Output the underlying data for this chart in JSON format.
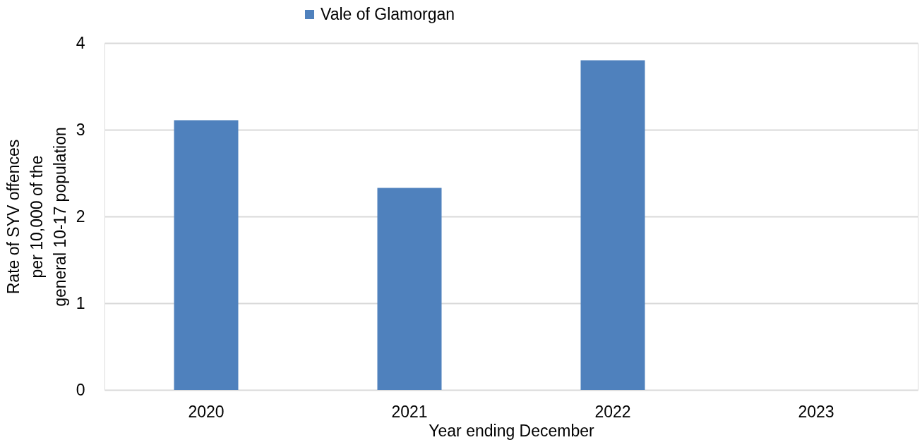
{
  "chart_data": {
    "type": "bar",
    "xlabel": "Year ending December",
    "ylabel": "Rate of SYV offences\nper 10,000 of the\ngeneral 10-17 population",
    "categories": [
      "2020",
      "2021",
      "2022",
      "2023"
    ],
    "series": [
      {
        "name": "Vale of Glamorgan",
        "color": "#4f81bd",
        "values": [
          3.11,
          2.33,
          3.8,
          null
        ]
      }
    ],
    "ylim": [
      0,
      4
    ],
    "yticks": [
      0,
      1,
      2,
      3,
      4
    ],
    "grid": "y",
    "legend": "top"
  }
}
